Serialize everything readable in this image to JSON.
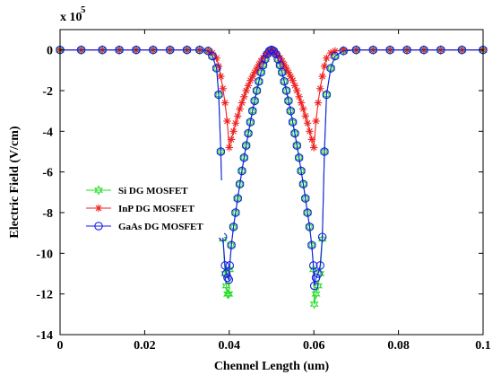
{
  "chart_data": {
    "type": "line",
    "title": "",
    "xlabel": "Chennel Length (um)",
    "ylabel": "Electric Field (V/cm)",
    "y_multiplier_label": "x 10",
    "y_multiplier_exponent": "5",
    "xlim": [
      0,
      0.1
    ],
    "ylim": [
      -14,
      1
    ],
    "xticks": [
      0,
      0.02,
      0.04,
      0.06,
      0.08,
      0.1
    ],
    "xtick_labels": [
      "0",
      "0.02",
      "0.04",
      "0.06",
      "0.08",
      "0.1"
    ],
    "yticks": [
      0,
      -2,
      -4,
      -6,
      -8,
      -10,
      -12,
      -14
    ],
    "ytick_labels": [
      "0",
      "-2",
      "-4",
      "-6",
      "-8",
      "-10",
      "-12",
      "-14"
    ],
    "grid": false,
    "legend_position": "left-middle",
    "series": [
      {
        "name": "Si DG MOSFET",
        "color": "#22dd22",
        "marker": "hexagram",
        "x": [
          0,
          0.005,
          0.01,
          0.014,
          0.018,
          0.022,
          0.026,
          0.03,
          0.033,
          0.035,
          0.036,
          0.037,
          0.0375,
          0.038,
          0.0385,
          0.039,
          0.0393,
          0.0396,
          0.0399,
          0.0401,
          0.0405,
          0.041,
          0.0415,
          0.042,
          0.0425,
          0.043,
          0.0435,
          0.044,
          0.0445,
          0.045,
          0.0455,
          0.046,
          0.0465,
          0.047,
          0.0475,
          0.048,
          0.0485,
          0.049,
          0.0495,
          0.05,
          0.0505,
          0.051,
          0.0515,
          0.052,
          0.0525,
          0.053,
          0.0535,
          0.054,
          0.0545,
          0.055,
          0.0555,
          0.056,
          0.0565,
          0.057,
          0.0575,
          0.058,
          0.0585,
          0.059,
          0.0595,
          0.0599,
          0.0601,
          0.0605,
          0.061,
          0.0615,
          0.062,
          0.0625,
          0.063,
          0.064,
          0.065,
          0.067,
          0.07,
          0.074,
          0.078,
          0.082,
          0.086,
          0.09,
          0.095,
          0.1
        ],
        "y": [
          0,
          0,
          0,
          0,
          0,
          0,
          0,
          0,
          0,
          -0.05,
          -0.3,
          -0.9,
          -2.2,
          -5.0,
          -9.3,
          -11.0,
          -11.6,
          -12.0,
          -12.0,
          -10.8,
          -9.6,
          -8.7,
          -8.0,
          -7.3,
          -6.6,
          -5.95,
          -5.3,
          -4.7,
          -4.1,
          -3.55,
          -3.0,
          -2.5,
          -2.0,
          -1.55,
          -1.1,
          -0.75,
          -0.45,
          -0.2,
          -0.05,
          0,
          -0.05,
          -0.2,
          -0.45,
          -0.75,
          -1.1,
          -1.55,
          -2.0,
          -2.5,
          -3.0,
          -3.55,
          -4.1,
          -4.7,
          -5.3,
          -5.95,
          -6.6,
          -7.3,
          -8.0,
          -8.7,
          -9.6,
          -10.8,
          -12.5,
          -12.0,
          -11.6,
          -11.0,
          -9.3,
          -5.0,
          -2.2,
          -0.9,
          -0.3,
          -0.05,
          0,
          0,
          0,
          0,
          0,
          0,
          0,
          0
        ]
      },
      {
        "name": "InP DG MOSFET",
        "color": "#ee2222",
        "marker": "asterisk",
        "x": [
          0,
          0.005,
          0.01,
          0.014,
          0.018,
          0.022,
          0.026,
          0.03,
          0.033,
          0.035,
          0.036,
          0.037,
          0.0375,
          0.038,
          0.0385,
          0.039,
          0.0395,
          0.04,
          0.0405,
          0.041,
          0.0415,
          0.042,
          0.0425,
          0.043,
          0.0435,
          0.044,
          0.0445,
          0.045,
          0.0455,
          0.046,
          0.0465,
          0.047,
          0.0475,
          0.048,
          0.0485,
          0.049,
          0.0495,
          0.05,
          0.0505,
          0.051,
          0.0515,
          0.052,
          0.0525,
          0.053,
          0.0535,
          0.054,
          0.0545,
          0.055,
          0.0555,
          0.056,
          0.0565,
          0.057,
          0.0575,
          0.058,
          0.0585,
          0.059,
          0.0595,
          0.06,
          0.0605,
          0.061,
          0.0615,
          0.062,
          0.0625,
          0.063,
          0.064,
          0.065,
          0.067,
          0.07,
          0.074,
          0.078,
          0.082,
          0.086,
          0.09,
          0.095,
          0.1
        ],
        "y": [
          0,
          0,
          0,
          0,
          0,
          0,
          0,
          0,
          0,
          -0.05,
          -0.15,
          -0.4,
          -0.8,
          -1.3,
          -1.9,
          -2.6,
          -3.5,
          -4.8,
          -4.4,
          -4.0,
          -3.6,
          -3.25,
          -2.9,
          -2.6,
          -2.3,
          -2.0,
          -1.75,
          -1.5,
          -1.3,
          -1.1,
          -0.9,
          -0.72,
          -0.55,
          -0.4,
          -0.28,
          -0.17,
          -0.08,
          0,
          -0.08,
          -0.17,
          -0.28,
          -0.4,
          -0.55,
          -0.72,
          -0.9,
          -1.1,
          -1.3,
          -1.5,
          -1.75,
          -2.0,
          -2.3,
          -2.6,
          -2.9,
          -3.25,
          -3.6,
          -4.0,
          -4.4,
          -4.8,
          -3.5,
          -2.6,
          -1.9,
          -1.3,
          -0.8,
          -0.4,
          -0.15,
          -0.05,
          0,
          0,
          0,
          0,
          0,
          0,
          0,
          0,
          0
        ]
      },
      {
        "name": "GaAs DG MOSFET",
        "color": "#1a1aee",
        "marker": "circle",
        "x": [
          0,
          0.005,
          0.01,
          0.014,
          0.018,
          0.022,
          0.026,
          0.03,
          0.033,
          0.035,
          0.036,
          0.037,
          0.0375,
          0.038,
          0.0385,
          0.039,
          0.0393,
          0.0396,
          0.0399,
          0.0401,
          0.0405,
          0.041,
          0.0415,
          0.042,
          0.0425,
          0.043,
          0.0435,
          0.044,
          0.0445,
          0.045,
          0.0455,
          0.046,
          0.0465,
          0.047,
          0.0475,
          0.048,
          0.0485,
          0.049,
          0.0495,
          0.05,
          0.0505,
          0.051,
          0.0515,
          0.052,
          0.0525,
          0.053,
          0.0535,
          0.054,
          0.0545,
          0.055,
          0.0555,
          0.056,
          0.0565,
          0.057,
          0.0575,
          0.058,
          0.0585,
          0.059,
          0.0595,
          0.0599,
          0.0601,
          0.0605,
          0.061,
          0.0615,
          0.062,
          0.0625,
          0.063,
          0.064,
          0.065,
          0.067,
          0.07,
          0.074,
          0.078,
          0.082,
          0.086,
          0.09,
          0.095,
          0.1
        ],
        "y": [
          0,
          0,
          0,
          0,
          0,
          0,
          0,
          0,
          0,
          -0.05,
          -0.3,
          -0.9,
          -2.2,
          -5.0,
          -9.2,
          -10.6,
          -11.0,
          -11.2,
          -11.3,
          -10.6,
          -9.6,
          -8.7,
          -8.0,
          -7.3,
          -6.6,
          -5.95,
          -5.3,
          -4.7,
          -4.1,
          -3.55,
          -3.0,
          -2.5,
          -2.0,
          -1.55,
          -1.1,
          -0.75,
          -0.45,
          -0.2,
          -0.05,
          0,
          -0.05,
          -0.2,
          -0.45,
          -0.75,
          -1.1,
          -1.55,
          -2.0,
          -2.5,
          -3.0,
          -3.55,
          -4.1,
          -4.7,
          -5.3,
          -5.95,
          -6.6,
          -7.3,
          -8.0,
          -8.7,
          -9.6,
          -10.6,
          -11.6,
          -11.2,
          -11.0,
          -10.6,
          -9.2,
          -5.0,
          -2.2,
          -0.9,
          -0.3,
          -0.05,
          0,
          0,
          0,
          0,
          0,
          0,
          0,
          0
        ]
      }
    ]
  }
}
